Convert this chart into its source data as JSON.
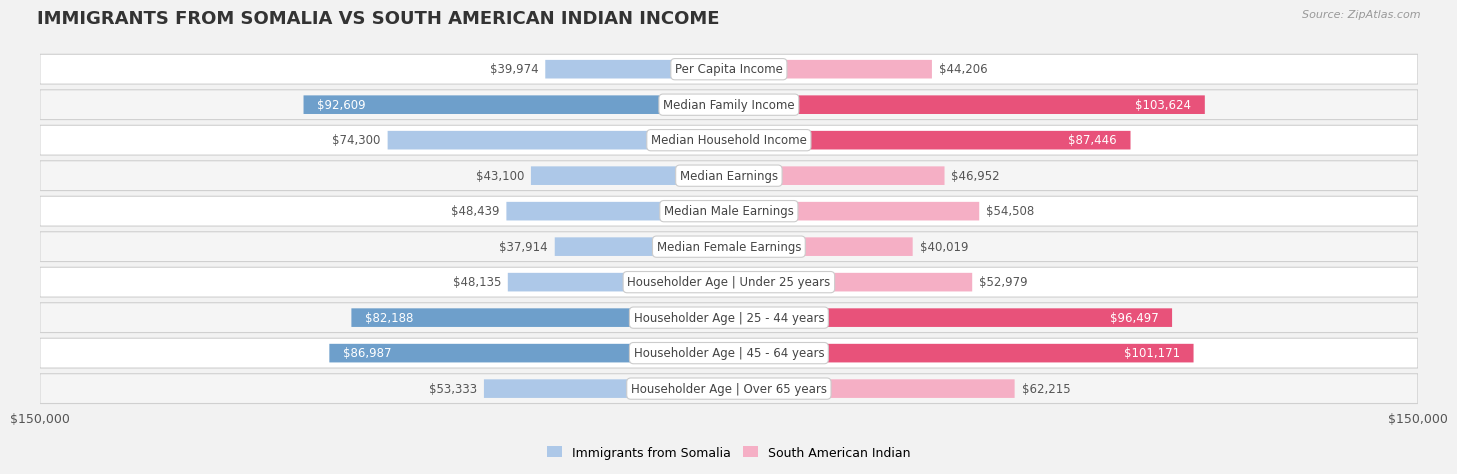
{
  "title": "IMMIGRANTS FROM SOMALIA VS SOUTH AMERICAN INDIAN INCOME",
  "source": "Source: ZipAtlas.com",
  "categories": [
    "Per Capita Income",
    "Median Family Income",
    "Median Household Income",
    "Median Earnings",
    "Median Male Earnings",
    "Median Female Earnings",
    "Householder Age | Under 25 years",
    "Householder Age | 25 - 44 years",
    "Householder Age | 45 - 64 years",
    "Householder Age | Over 65 years"
  ],
  "somalia_values": [
    39974,
    92609,
    74300,
    43100,
    48439,
    37914,
    48135,
    82188,
    86987,
    53333
  ],
  "south_american_values": [
    44206,
    103624,
    87446,
    46952,
    54508,
    40019,
    52979,
    96497,
    101171,
    62215
  ],
  "somalia_color_light": "#adc8e8",
  "somalia_color_dark": "#6e9fcb",
  "south_american_color_light": "#f5afc5",
  "south_american_color_dark": "#e8527a",
  "inside_label_threshold": 75000,
  "x_max": 150000,
  "x_tick_label": "$150,000",
  "row_bg_odd": "#f5f5f5",
  "row_bg_even": "#ffffff",
  "legend_somalia": "Immigrants from Somalia",
  "legend_south_american": "South American Indian",
  "title_fontsize": 13,
  "label_fontsize": 8.5,
  "tick_fontsize": 9
}
